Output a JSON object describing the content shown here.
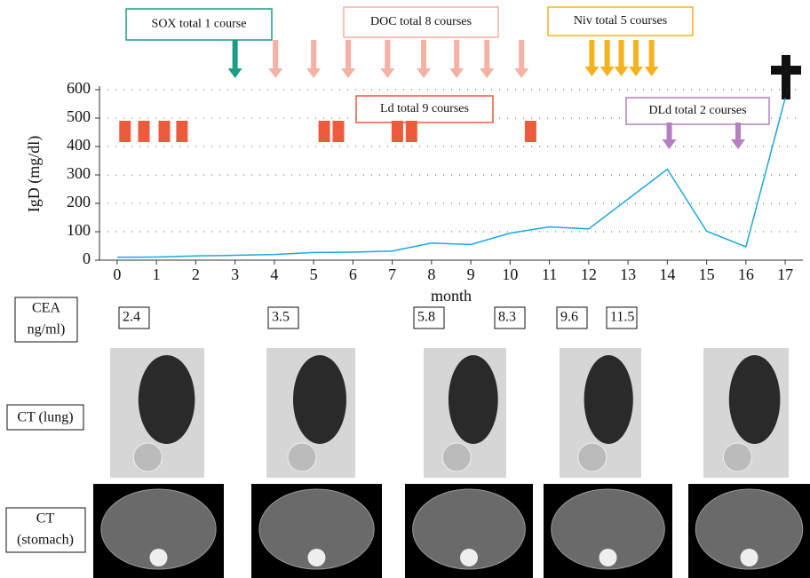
{
  "chart_data": {
    "type": "line",
    "x": [
      0,
      1,
      2,
      3,
      4,
      5,
      6,
      7,
      8,
      9,
      10,
      11,
      12,
      14,
      15,
      16,
      17
    ],
    "values": [
      10,
      11,
      15,
      17,
      20,
      27,
      28,
      32,
      60,
      55,
      95,
      117,
      110,
      320,
      102,
      47,
      570
    ],
    "color": "#1ea6e0",
    "xlabel": "month",
    "ylabel": "IgD (mg/dl)",
    "xlim": [
      -0.45,
      17.45
    ],
    "ylim": [
      0,
      600
    ],
    "xticks": [
      0,
      1,
      2,
      3,
      4,
      5,
      6,
      7,
      8,
      9,
      10,
      11,
      12,
      13,
      14,
      15,
      16,
      17
    ],
    "yticks": [
      0,
      100,
      200,
      300,
      400,
      500,
      600
    ],
    "grid": true,
    "treatments": [
      {
        "label": "SOX total 1 course",
        "color": "#1a9e85",
        "kind": "arrow",
        "times": [
          3
        ]
      },
      {
        "label": "DOC total 8 courses",
        "color": "#f5b1a3",
        "kind": "arrow",
        "times": [
          4.03,
          5.0,
          5.88,
          6.88,
          7.8,
          8.64,
          9.41,
          10.29
        ]
      },
      {
        "label": "Niv total 5 courses",
        "color": "#f5b21f",
        "kind": "arrow",
        "times": [
          12.08,
          12.47,
          12.83,
          13.2,
          13.6
        ]
      },
      {
        "label": "Ld total 9 courses",
        "color": "#ee5a3c",
        "kind": "block",
        "times": [
          0.2,
          0.68,
          1.2,
          1.65,
          5.27,
          5.63,
          7.13,
          7.49,
          10.52
        ]
      },
      {
        "label": "DLd total 2 courses",
        "color": "#b57fc0",
        "kind": "arrow",
        "times": [
          14.05,
          15.8
        ]
      }
    ]
  },
  "cea": {
    "label": [
      "CEA",
      "ng/ml)"
    ],
    "values": [
      2.4,
      3.5,
      5.8,
      8.3,
      9.6,
      11.5
    ]
  },
  "ct_lung": {
    "label": "CT (lung)"
  },
  "ct_stomach": {
    "label": [
      "CT",
      "(stomach)"
    ]
  }
}
